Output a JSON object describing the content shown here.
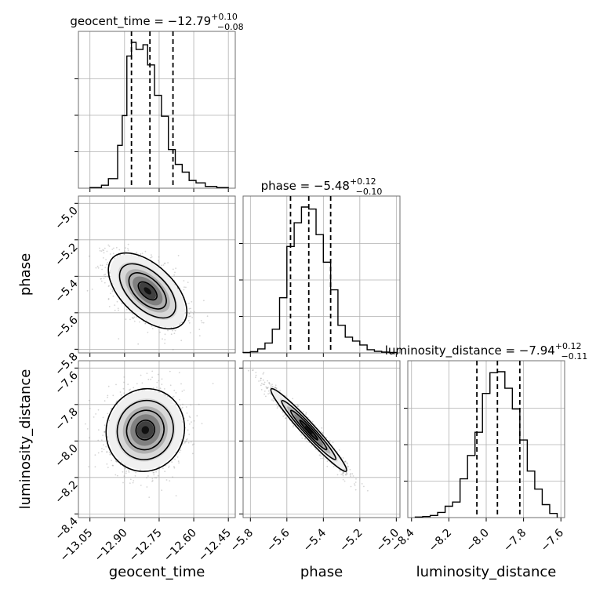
{
  "chart_data": {
    "type": "corner",
    "parameters": [
      {
        "name": "geocent_time",
        "xlabel": "geocent_time",
        "range": [
          -13.1,
          -12.42
        ],
        "ticks": [
          -13.05,
          -12.9,
          -12.75,
          -12.6,
          -12.45
        ],
        "tick_labels": [
          "−13.05",
          "−12.90",
          "−12.75",
          "−12.60",
          "−12.45"
        ],
        "median": -12.79,
        "plus": "+0.10",
        "minus": "−0.08",
        "title": "geocent_time = −12.79",
        "title_plus": "+0.10",
        "title_minus": "−0.08",
        "quantiles": [
          -12.87,
          -12.79,
          -12.69
        ],
        "hist_bins": [
          -13.05,
          -13.0,
          -12.97,
          -12.93,
          -12.91,
          -12.89,
          -12.87,
          -12.85,
          -12.82,
          -12.8,
          -12.77,
          -12.74,
          -12.71,
          -12.68,
          -12.65,
          -12.62,
          -12.59,
          -12.55,
          -12.5,
          -12.45
        ],
        "hist_counts": [
          1,
          5,
          16,
          72,
          122,
          222,
          245,
          233,
          241,
          207,
          156,
          121,
          65,
          40,
          27,
          13,
          9,
          3,
          1
        ]
      },
      {
        "name": "phase",
        "xlabel": "phase",
        "range": [
          -5.84,
          -4.98
        ],
        "ticks": [
          -5.8,
          -5.6,
          -5.4,
          -5.2,
          -5.0
        ],
        "tick_labels": [
          "−5.8",
          "−5.6",
          "−5.4",
          "−5.2",
          "−5.0"
        ],
        "ylabel": "phase",
        "y_range": [
          -5.82,
          -4.96
        ],
        "y_ticks": [
          -5.0,
          -5.2,
          -5.4,
          -5.6,
          -5.8
        ],
        "y_tick_labels": [
          "−5.0",
          "−5.2",
          "−5.4",
          "−5.6",
          "−5.8"
        ],
        "median": -5.48,
        "plus": "+0.12",
        "minus": "−0.10",
        "title": "phase = −5.48",
        "title_plus": "+0.12",
        "title_minus": "−0.10",
        "quantiles": [
          -5.58,
          -5.48,
          -5.36
        ],
        "hist_bins": [
          -5.84,
          -5.8,
          -5.76,
          -5.72,
          -5.68,
          -5.64,
          -5.6,
          -5.56,
          -5.52,
          -5.48,
          -5.44,
          -5.4,
          -5.36,
          -5.32,
          -5.28,
          -5.24,
          -5.2,
          -5.16,
          -5.12,
          -5.08,
          -5.04,
          -5.0
        ],
        "hist_counts": [
          1,
          3,
          10,
          25,
          60,
          140,
          270,
          330,
          370,
          365,
          300,
          230,
          160,
          70,
          40,
          30,
          20,
          8,
          4,
          2,
          1
        ]
      },
      {
        "name": "luminosity_distance",
        "xlabel": "luminosity_distance",
        "range": [
          -8.42,
          -7.58
        ],
        "ticks": [
          -8.4,
          -8.2,
          -8.0,
          -7.8,
          -7.6
        ],
        "tick_labels": [
          "−8.4",
          "−8.2",
          "−8.0",
          "−7.8",
          "−7.6"
        ],
        "ylabel": "luminosity_distance",
        "y_range": [
          -8.42,
          -7.56
        ],
        "y_ticks": [
          -7.6,
          -7.8,
          -8.0,
          -8.2,
          -8.4
        ],
        "y_tick_labels": [
          "−7.6",
          "−7.8",
          "−8.0",
          "−8.2",
          "−8.4"
        ],
        "median": -7.94,
        "plus": "+0.12",
        "minus": "−0.11",
        "title": "luminosity_distance = −7.94",
        "title_plus": "+0.12",
        "title_minus": "−0.11",
        "quantiles": [
          -8.05,
          -7.94,
          -7.82
        ],
        "hist_bins": [
          -8.38,
          -8.34,
          -8.3,
          -8.26,
          -8.22,
          -8.18,
          -8.14,
          -8.1,
          -8.06,
          -8.02,
          -7.98,
          -7.94,
          -7.9,
          -7.86,
          -7.82,
          -7.78,
          -7.74,
          -7.7,
          -7.66,
          -7.62
        ],
        "hist_counts": [
          1,
          2,
          4,
          10,
          22,
          30,
          75,
          120,
          165,
          240,
          280,
          282,
          250,
          210,
          150,
          90,
          55,
          25,
          8
        ]
      }
    ],
    "pairs": [
      {
        "x": "geocent_time",
        "y": "phase",
        "correlation": -0.55,
        "center": [
          -12.8,
          -5.48
        ],
        "spread": [
          0.09,
          0.11
        ]
      },
      {
        "x": "geocent_time",
        "y": "luminosity_distance",
        "correlation": 0.05,
        "center": [
          -12.81,
          -7.94
        ],
        "spread": [
          0.09,
          0.12
        ]
      },
      {
        "x": "phase",
        "y": "luminosity_distance",
        "correlation": -0.97,
        "center": [
          -5.48,
          -7.94
        ],
        "spread": [
          0.11,
          0.12
        ]
      }
    ],
    "grid": true
  }
}
